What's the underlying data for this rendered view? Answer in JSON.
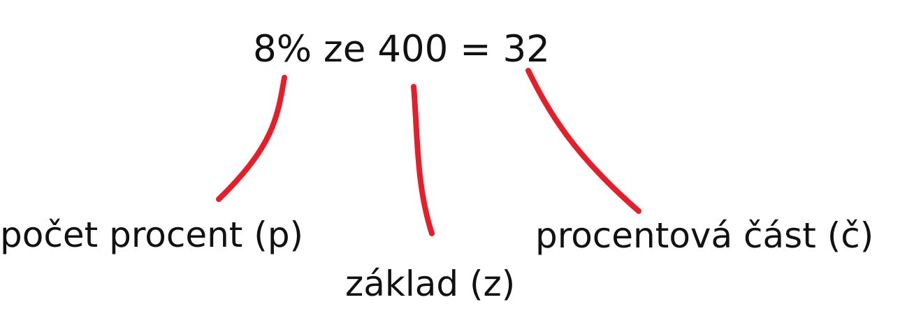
{
  "equation": "8% ze 400 = 32",
  "labels": {
    "pocet_procent": "počet procent (p)",
    "zaklad": "základ (z)",
    "procentova_cast": "procentová část (č)"
  },
  "colors": {
    "connector": "#e51e2a",
    "text": "#111111",
    "background": "#ffffff"
  }
}
